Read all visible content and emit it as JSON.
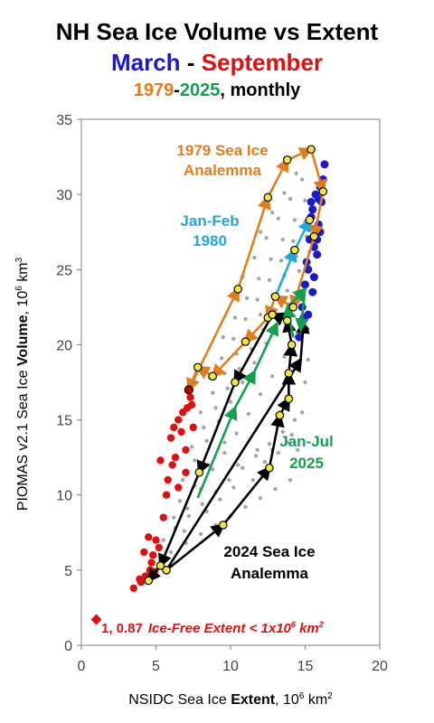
{
  "title": {
    "line1": "NH Sea Ice Volume vs Extent",
    "march": "March",
    "dash": " - ",
    "september": "September",
    "year_start": "1979",
    "year_dash": "-",
    "year_end": "2025",
    "monthly": ", monthly"
  },
  "colors": {
    "march": "#1a1ac8",
    "september": "#e01010",
    "orange": "#e07d1e",
    "green": "#12a050",
    "cyan": "#1fa8e0",
    "black": "#000000",
    "grey": "#a6a6a6"
  },
  "chart_data": {
    "type": "scatter",
    "xlabel_plain": "NSIDC Sea Ice ",
    "xlabel_bold": "Extent",
    "xlabel_unit": ", 10",
    "xlabel_exp": "6",
    "xlabel_tail": " km",
    "xlabel_sq": "2",
    "ylabel_plain": "PIOMAS v2.1 Sea Ice ",
    "ylabel_bold": "Volume",
    "ylabel_unit": ", 10",
    "ylabel_exp": "6",
    "ylabel_tail": " km",
    "ylabel_cube": "3",
    "xlim": [
      0,
      20
    ],
    "ylim": [
      0,
      35
    ],
    "xticks": [
      0,
      5,
      10,
      15,
      20
    ],
    "yticks": [
      0,
      5,
      10,
      15,
      20,
      25,
      30,
      35
    ],
    "annotations": {
      "a1979_line1": "1979 Sea Ice",
      "a1979_line2": "Analemma",
      "janfeb_line1": "Jan-Feb",
      "janfeb_line2": "1980",
      "janjul_line1": "Jan-Jul",
      "janjul_line2": "2025",
      "a2024_line1": "2024 Sea Ice",
      "a2024_line2": "Analemma",
      "icefree_point": "1, 0.87",
      "icefree_text": "Ice-Free Extent < 1x10",
      "icefree_exp": "6",
      "icefree_tail": " km",
      "icefree_sq": "2"
    },
    "series": [
      {
        "name": "March",
        "points": [
          [
            15.0,
            21.0
          ],
          [
            15.5,
            23.5
          ],
          [
            15.2,
            25.0
          ],
          [
            15.8,
            26.0
          ],
          [
            15.3,
            27.0
          ],
          [
            15.9,
            28.0
          ],
          [
            15.5,
            29.0
          ],
          [
            16.1,
            29.5
          ],
          [
            15.7,
            30.0
          ],
          [
            16.2,
            31.0
          ],
          [
            16.0,
            30.5
          ],
          [
            15.4,
            28.5
          ],
          [
            15.0,
            24.0
          ],
          [
            14.8,
            22.5
          ],
          [
            15.6,
            26.5
          ],
          [
            16.0,
            27.5
          ],
          [
            15.2,
            22.0
          ],
          [
            14.6,
            20.5
          ],
          [
            15.1,
            25.5
          ],
          [
            16.3,
            32.0
          ],
          [
            15.9,
            29.7
          ],
          [
            15.6,
            24.5
          ],
          [
            15.8,
            27.0
          ],
          [
            15.4,
            29.5
          ],
          [
            14.9,
            21.8
          ]
        ]
      },
      {
        "name": "September",
        "points": [
          [
            3.5,
            3.8
          ],
          [
            4.0,
            4.2
          ],
          [
            4.3,
            4.6
          ],
          [
            4.6,
            5.0
          ],
          [
            4.8,
            6.0
          ],
          [
            4.5,
            7.2
          ],
          [
            5.2,
            6.5
          ],
          [
            5.0,
            7.0
          ],
          [
            4.7,
            5.5
          ],
          [
            5.5,
            8.5
          ],
          [
            5.7,
            10.0
          ],
          [
            5.3,
            12.3
          ],
          [
            6.0,
            13.8
          ],
          [
            6.2,
            14.5
          ],
          [
            6.5,
            15.0
          ],
          [
            6.8,
            15.5
          ],
          [
            7.0,
            13.0
          ],
          [
            6.3,
            12.5
          ],
          [
            6.7,
            14.2
          ],
          [
            7.1,
            15.8
          ],
          [
            7.3,
            16.5
          ],
          [
            7.5,
            14.5
          ],
          [
            7.0,
            11.5
          ],
          [
            6.5,
            10.5
          ],
          [
            4.2,
            6.2
          ],
          [
            4.9,
            4.9
          ],
          [
            3.9,
            4.4
          ],
          [
            5.8,
            11.0
          ],
          [
            6.1,
            12.0
          ],
          [
            7.4,
            16.0
          ]
        ]
      },
      {
        "name": "Ice-Free",
        "points": [
          [
            1.0,
            0.87
          ]
        ]
      },
      {
        "name": "1979 Analemma",
        "points": [
          [
            15.4,
            33.0
          ],
          [
            16.2,
            30.2
          ],
          [
            15.6,
            27.2
          ],
          [
            14.2,
            22.5
          ],
          [
            13.0,
            23.2
          ],
          [
            12.5,
            21.8
          ],
          [
            11.0,
            20.2
          ],
          [
            8.8,
            17.9
          ],
          [
            7.8,
            18.5
          ],
          [
            7.2,
            17.0
          ],
          [
            10.5,
            23.7
          ],
          [
            12.5,
            29.8
          ],
          [
            13.8,
            32.3
          ],
          [
            15.4,
            33.0
          ]
        ]
      },
      {
        "name": "Jan-Feb 1980",
        "points": [
          [
            13.0,
            23.2
          ],
          [
            14.3,
            26.3
          ],
          [
            15.3,
            28.3
          ]
        ]
      },
      {
        "name": "Jan-Jul 2025",
        "points": [
          [
            7.8,
            9.8
          ],
          [
            10.3,
            15.8
          ],
          [
            11.6,
            18.2
          ],
          [
            13.1,
            21.4
          ],
          [
            14.2,
            20.5
          ],
          [
            13.8,
            22.5
          ],
          [
            15.0,
            23.7
          ],
          [
            14.7,
            21.0
          ]
        ]
      },
      {
        "name": "2024 Analemma",
        "points": [
          [
            5.7,
            5.0
          ],
          [
            9.5,
            8.0
          ],
          [
            12.6,
            11.8
          ],
          [
            13.3,
            15.3
          ],
          [
            13.9,
            16.4
          ],
          [
            13.9,
            18.1
          ],
          [
            14.1,
            20.0
          ],
          [
            13.8,
            21.6
          ],
          [
            12.8,
            22.0
          ],
          [
            10.3,
            17.5
          ],
          [
            7.9,
            11.5
          ],
          [
            5.3,
            5.3
          ],
          [
            4.5,
            4.3
          ],
          [
            5.7,
            5.0
          ],
          [
            14.7,
            19.0
          ],
          [
            14.9,
            21.5
          ]
        ]
      },
      {
        "name": "Other years",
        "points": [
          [
            6.2,
            8.5
          ],
          [
            7.1,
            9.1
          ],
          [
            8.0,
            10.4
          ],
          [
            8.8,
            11.7
          ],
          [
            9.6,
            12.8
          ],
          [
            10.4,
            14.1
          ],
          [
            11.2,
            15.4
          ],
          [
            12.0,
            16.7
          ],
          [
            12.8,
            17.9
          ],
          [
            13.6,
            19.2
          ],
          [
            14.4,
            20.5
          ],
          [
            15.1,
            21.8
          ],
          [
            6.8,
            11.0
          ],
          [
            7.6,
            12.3
          ],
          [
            8.4,
            13.6
          ],
          [
            9.2,
            14.9
          ],
          [
            10.0,
            16.2
          ],
          [
            10.8,
            17.5
          ],
          [
            11.6,
            18.8
          ],
          [
            12.4,
            20.1
          ],
          [
            13.2,
            21.4
          ],
          [
            14.0,
            22.7
          ],
          [
            14.8,
            24.0
          ],
          [
            7.4,
            13.2
          ],
          [
            8.2,
            14.5
          ],
          [
            9.0,
            15.8
          ],
          [
            9.8,
            17.1
          ],
          [
            10.6,
            18.4
          ],
          [
            11.4,
            19.7
          ],
          [
            12.2,
            21.0
          ],
          [
            13.0,
            22.3
          ],
          [
            13.8,
            23.6
          ],
          [
            14.6,
            24.9
          ],
          [
            15.3,
            26.2
          ],
          [
            8.0,
            15.5
          ],
          [
            8.8,
            16.8
          ],
          [
            9.6,
            18.1
          ],
          [
            10.4,
            19.4
          ],
          [
            11.2,
            20.7
          ],
          [
            12.0,
            22.0
          ],
          [
            12.8,
            23.3
          ],
          [
            13.6,
            24.6
          ],
          [
            14.4,
            25.9
          ],
          [
            15.1,
            27.2
          ],
          [
            8.6,
            17.8
          ],
          [
            9.4,
            19.1
          ],
          [
            10.2,
            20.4
          ],
          [
            11.0,
            21.7
          ],
          [
            11.8,
            23.0
          ],
          [
            12.6,
            24.3
          ],
          [
            13.4,
            25.6
          ],
          [
            14.2,
            26.9
          ],
          [
            15.0,
            28.2
          ],
          [
            9.5,
            20.5
          ],
          [
            10.3,
            21.8
          ],
          [
            11.1,
            23.1
          ],
          [
            11.9,
            24.4
          ],
          [
            12.7,
            25.7
          ],
          [
            13.5,
            27.0
          ],
          [
            14.3,
            28.3
          ],
          [
            15.0,
            29.6
          ],
          [
            10.8,
            24.5
          ],
          [
            11.6,
            25.8
          ],
          [
            12.4,
            27.1
          ],
          [
            13.2,
            28.4
          ],
          [
            14.0,
            29.7
          ],
          [
            14.8,
            31.0
          ],
          [
            12.0,
            27.5
          ],
          [
            12.8,
            28.8
          ],
          [
            13.6,
            30.1
          ],
          [
            14.4,
            31.4
          ],
          [
            5.5,
            7.0
          ],
          [
            6.3,
            7.8
          ],
          [
            7.2,
            8.6
          ],
          [
            8.1,
            9.4
          ],
          [
            9.0,
            10.2
          ],
          [
            9.9,
            11.0
          ],
          [
            10.8,
            11.8
          ],
          [
            11.7,
            12.6
          ],
          [
            12.6,
            13.4
          ],
          [
            13.5,
            14.2
          ],
          [
            14.3,
            15.0
          ],
          [
            6.0,
            6.2
          ],
          [
            7.0,
            6.8
          ],
          [
            8.0,
            7.4
          ],
          [
            9.0,
            8.0
          ],
          [
            10.0,
            8.6
          ],
          [
            11.0,
            9.2
          ],
          [
            12.0,
            9.8
          ],
          [
            13.0,
            10.4
          ],
          [
            14.0,
            11.0
          ],
          [
            14.5,
            13.0
          ],
          [
            14.8,
            15.5
          ],
          [
            15.0,
            17.5
          ],
          [
            15.2,
            19.0
          ],
          [
            13.8,
            13.5
          ],
          [
            12.8,
            13.0
          ],
          [
            11.8,
            13.0
          ],
          [
            10.5,
            12.0
          ],
          [
            9.6,
            13.5
          ],
          [
            8.5,
            12.0
          ],
          [
            7.6,
            10.6
          ],
          [
            6.6,
            9.6
          ],
          [
            6.9,
            7.6
          ],
          [
            8.4,
            8.9
          ],
          [
            9.3,
            9.7
          ],
          [
            10.2,
            10.5
          ],
          [
            11.5,
            11.0
          ],
          [
            12.3,
            12.2
          ],
          [
            13.2,
            12.8
          ],
          [
            14.1,
            14.0
          ]
        ]
      }
    ]
  }
}
